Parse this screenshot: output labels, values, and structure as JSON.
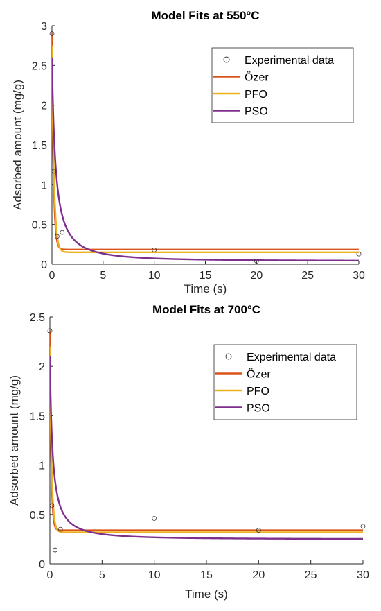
{
  "chart_data": [
    {
      "type": "line",
      "title": "Model Fits at 550°C",
      "xlabel": "Time (s)",
      "ylabel": "Adsorbed amount (mg/g)",
      "xlim": [
        0,
        30
      ],
      "ylim": [
        0,
        3
      ],
      "xticks": [
        0,
        5,
        10,
        15,
        20,
        25,
        30
      ],
      "yticks": [
        0,
        0.5,
        1,
        1.5,
        2,
        2.5,
        3
      ],
      "ytick_labels": [
        "0",
        "0.5",
        "1",
        "1.5",
        "2",
        "2.5",
        "3"
      ],
      "grid": false,
      "legend_position": "top-right",
      "legend": [
        "Experimental data",
        "Özer",
        "PFO",
        "PSO"
      ],
      "scatter": {
        "name": "Experimental data",
        "x": [
          0,
          0.2,
          0.5,
          1,
          10,
          20,
          30
        ],
        "y": [
          2.9,
          1.17,
          0.35,
          0.4,
          0.18,
          0.04,
          0.13
        ]
      },
      "series": [
        {
          "name": "Özer",
          "color": "#D95319",
          "model": "pfo",
          "qe": 0.185,
          "q0": 2.9,
          "k": 6.5
        },
        {
          "name": "PFO",
          "color": "#EDB120",
          "model": "pfo",
          "qe": 0.15,
          "q0": 2.75,
          "k": 5.0
        },
        {
          "name": "PSO",
          "color": "#7E2F8E",
          "model": "pso",
          "qe": 0.04,
          "q0": 2.6,
          "k": 3.0
        }
      ]
    },
    {
      "type": "line",
      "title": "Model Fits at 700°C",
      "xlabel": "Time (s)",
      "ylabel": "Adsorbed amount (mg/g)",
      "xlim": [
        0,
        30
      ],
      "ylim": [
        0,
        2.5
      ],
      "xticks": [
        0,
        5,
        10,
        15,
        20,
        25,
        30
      ],
      "yticks": [
        0,
        0.5,
        1,
        1.5,
        2,
        2.5
      ],
      "ytick_labels": [
        "0",
        "0.5",
        "1",
        "1.5",
        "2",
        "2.5"
      ],
      "grid": false,
      "legend_position": "top-right",
      "legend": [
        "Experimental data",
        "Özer",
        "PFO",
        "PSO"
      ],
      "scatter": {
        "name": "Experimental data",
        "x": [
          0,
          0.2,
          0.5,
          1,
          10,
          20,
          30
        ],
        "y": [
          2.36,
          0.59,
          0.14,
          0.35,
          0.46,
          0.34,
          0.38
        ]
      },
      "series": [
        {
          "name": "Özer",
          "color": "#D95319",
          "model": "pfo",
          "qe": 0.34,
          "q0": 2.36,
          "k": 8.0
        },
        {
          "name": "PFO",
          "color": "#EDB120",
          "model": "pfo",
          "qe": 0.32,
          "q0": 2.2,
          "k": 6.0
        },
        {
          "name": "PSO",
          "color": "#7E2F8E",
          "model": "pso",
          "qe": 0.25,
          "q0": 2.1,
          "k": 4.0
        }
      ]
    }
  ]
}
